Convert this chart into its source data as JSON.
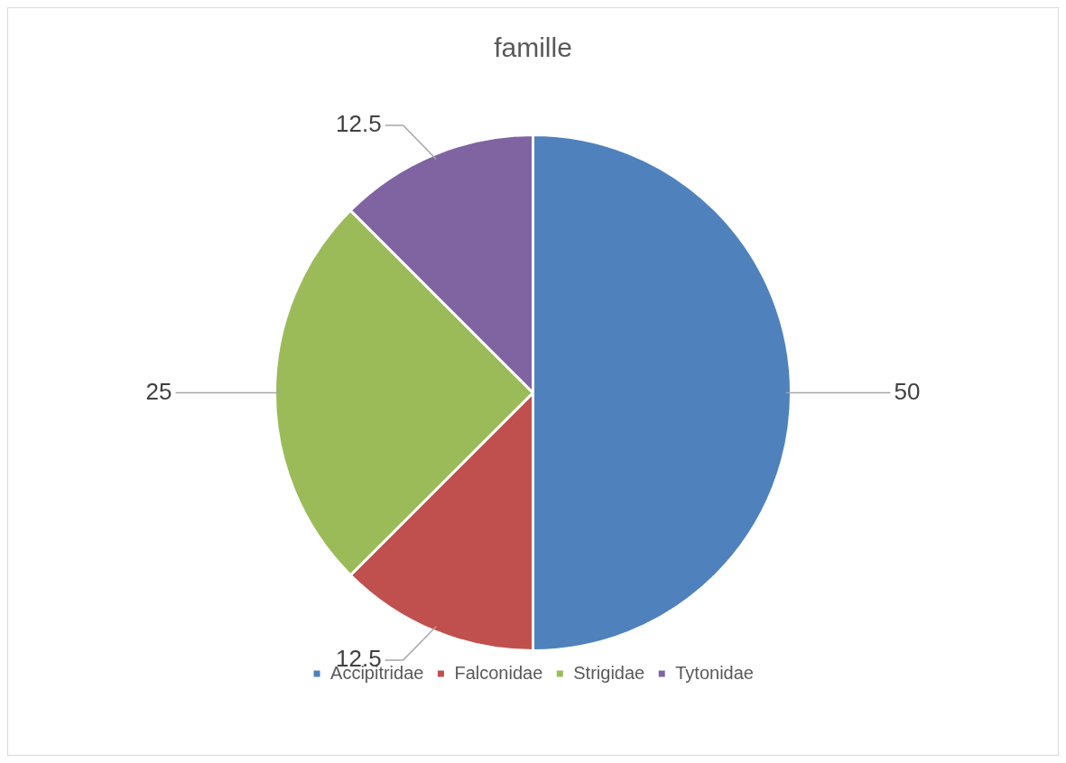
{
  "chart_data": {
    "type": "pie",
    "title": "famille",
    "categories": [
      "Accipitridae",
      "Falconidae",
      "Strigidae",
      "Tytonidae"
    ],
    "values": [
      50,
      12.5,
      25,
      12.5
    ],
    "colors": [
      "#4f81bd",
      "#c0504d",
      "#9bbb59",
      "#8064a2"
    ],
    "data_labels": true,
    "legend": "bottom"
  }
}
